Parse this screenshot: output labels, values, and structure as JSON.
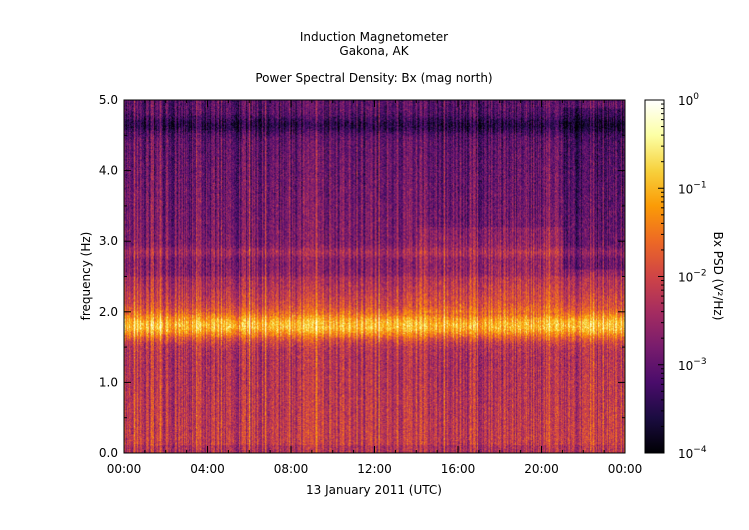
{
  "chart_data": {
    "type": "heatmap",
    "title_lines": [
      "Induction Magnetometer",
      "Gakona, AK"
    ],
    "subtitle": "Power Spectral Density: Bx (mag north)",
    "xlabel": "13 January 2011 (UTC)",
    "ylabel": "frequency (Hz)",
    "x_range_hours": [
      0,
      24
    ],
    "x_ticks": [
      {
        "hour": 0,
        "label": "00:00"
      },
      {
        "hour": 4,
        "label": "04:00"
      },
      {
        "hour": 8,
        "label": "08:00"
      },
      {
        "hour": 12,
        "label": "12:00"
      },
      {
        "hour": 16,
        "label": "16:00"
      },
      {
        "hour": 20,
        "label": "20:00"
      },
      {
        "hour": 24,
        "label": "00:00"
      }
    ],
    "ylim": [
      0.0,
      5.0
    ],
    "y_ticks": [
      {
        "value": 0.0,
        "label": "0.0"
      },
      {
        "value": 1.0,
        "label": "1.0"
      },
      {
        "value": 2.0,
        "label": "2.0"
      },
      {
        "value": 3.0,
        "label": "3.0"
      },
      {
        "value": 4.0,
        "label": "4.0"
      },
      {
        "value": 5.0,
        "label": "5.0"
      }
    ],
    "colorbar": {
      "label": "Bx PSD (V²/Hz)",
      "scale": "log",
      "range": [
        0.0001,
        1
      ],
      "ticks": [
        {
          "value": 1,
          "base": "10",
          "exp": "0"
        },
        {
          "value": 0.1,
          "base": "10",
          "exp": "−1"
        },
        {
          "value": 0.01,
          "base": "10",
          "exp": "−2"
        },
        {
          "value": 0.001,
          "base": "10",
          "exp": "−3"
        },
        {
          "value": 0.0001,
          "base": "10",
          "exp": "−4"
        }
      ],
      "colormap": [
        "#000004",
        "#1b0c41",
        "#4a0c6b",
        "#781c6d",
        "#a52c60",
        "#cf4446",
        "#ed6925",
        "#fb9b06",
        "#f7d13d",
        "#fcffa4",
        "#ffffff"
      ]
    },
    "features": [
      {
        "name": "Schumann-like band",
        "freq_hz": 1.8,
        "peak_psd": 0.1
      },
      {
        "name": "secondary band",
        "freq_hz": 2.85,
        "peak_psd": 0.01
      },
      {
        "name": "low-PSD band",
        "freq_hz": 4.65,
        "peak_psd": 0.0002
      }
    ]
  }
}
